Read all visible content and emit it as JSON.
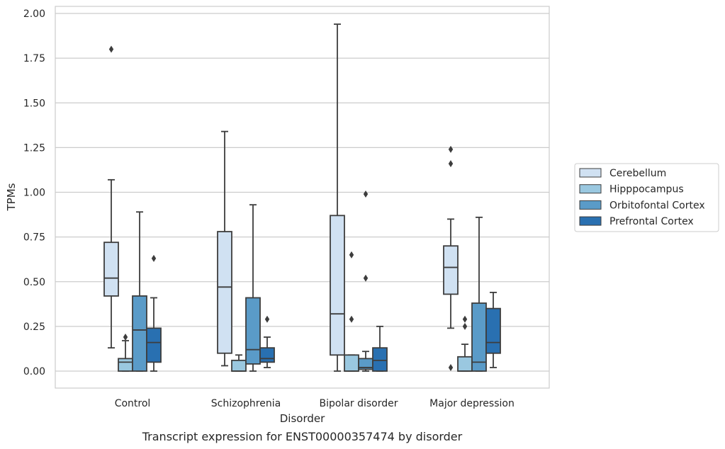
{
  "chart_data": {
    "type": "box",
    "caption": "Transcript expression for ENST00000357474 by disorder",
    "xlabel": "Disorder",
    "ylabel": "TPMs",
    "ylim": [
      -0.095,
      2.04
    ],
    "yticks": [
      "0.00",
      "0.25",
      "0.50",
      "0.75",
      "1.00",
      "1.25",
      "1.50",
      "1.75",
      "2.00"
    ],
    "ytick_values": [
      0,
      0.25,
      0.5,
      0.75,
      1.0,
      1.25,
      1.5,
      1.75,
      2.0
    ],
    "grid": true,
    "legend_position": "right",
    "categories": [
      "Control",
      "Schizophrenia",
      "Bipolar disorder",
      "Major depression"
    ],
    "series": [
      {
        "name": "Cerebellum",
        "color": "#d0e1f2",
        "boxes": [
          {
            "min": 0.13,
            "q1": 0.42,
            "median": 0.52,
            "q3": 0.72,
            "max": 1.07,
            "outliers": [
              1.8
            ]
          },
          {
            "min": 0.03,
            "q1": 0.1,
            "median": 0.47,
            "q3": 0.78,
            "max": 1.34,
            "outliers": []
          },
          {
            "min": 0.0,
            "q1": 0.09,
            "median": 0.32,
            "q3": 0.87,
            "max": 1.94,
            "outliers": []
          },
          {
            "min": 0.24,
            "q1": 0.43,
            "median": 0.58,
            "q3": 0.7,
            "max": 0.85,
            "outliers": [
              1.24,
              1.16,
              0.02
            ]
          }
        ]
      },
      {
        "name": "Hipppocampus",
        "color": "#9ac8e0",
        "boxes": [
          {
            "min": 0.0,
            "q1": 0.0,
            "median": 0.05,
            "q3": 0.07,
            "max": 0.17,
            "outliers": [
              0.19
            ]
          },
          {
            "min": 0.0,
            "q1": 0.0,
            "median": 0.0,
            "q3": 0.06,
            "max": 0.09,
            "outliers": []
          },
          {
            "min": 0.0,
            "q1": 0.0,
            "median": 0.0,
            "q3": 0.09,
            "max": 0.09,
            "outliers": [
              0.65,
              0.29
            ]
          },
          {
            "min": 0.0,
            "q1": 0.0,
            "median": 0.0,
            "q3": 0.08,
            "max": 0.15,
            "outliers": [
              0.29,
              0.25
            ]
          }
        ]
      },
      {
        "name": "Orbitofontal Cortex",
        "color": "#5a9bc8",
        "boxes": [
          {
            "min": 0.0,
            "q1": 0.0,
            "median": 0.23,
            "q3": 0.42,
            "max": 0.89,
            "outliers": []
          },
          {
            "min": 0.0,
            "q1": 0.04,
            "median": 0.12,
            "q3": 0.41,
            "max": 0.93,
            "outliers": []
          },
          {
            "min": 0.0,
            "q1": 0.01,
            "median": 0.02,
            "q3": 0.07,
            "max": 0.11,
            "outliers": [
              0.99,
              0.52
            ]
          },
          {
            "min": 0.0,
            "q1": 0.0,
            "median": 0.05,
            "q3": 0.38,
            "max": 0.86,
            "outliers": []
          }
        ]
      },
      {
        "name": "Prefrontal Cortex",
        "color": "#2970b1",
        "boxes": [
          {
            "min": 0.0,
            "q1": 0.05,
            "median": 0.16,
            "q3": 0.24,
            "max": 0.41,
            "outliers": [
              0.63
            ]
          },
          {
            "min": 0.02,
            "q1": 0.05,
            "median": 0.07,
            "q3": 0.13,
            "max": 0.19,
            "outliers": [
              0.29
            ]
          },
          {
            "min": 0.0,
            "q1": 0.0,
            "median": 0.06,
            "q3": 0.13,
            "max": 0.25,
            "outliers": []
          },
          {
            "min": 0.02,
            "q1": 0.1,
            "median": 0.16,
            "q3": 0.35,
            "max": 0.44,
            "outliers": []
          }
        ]
      }
    ]
  }
}
